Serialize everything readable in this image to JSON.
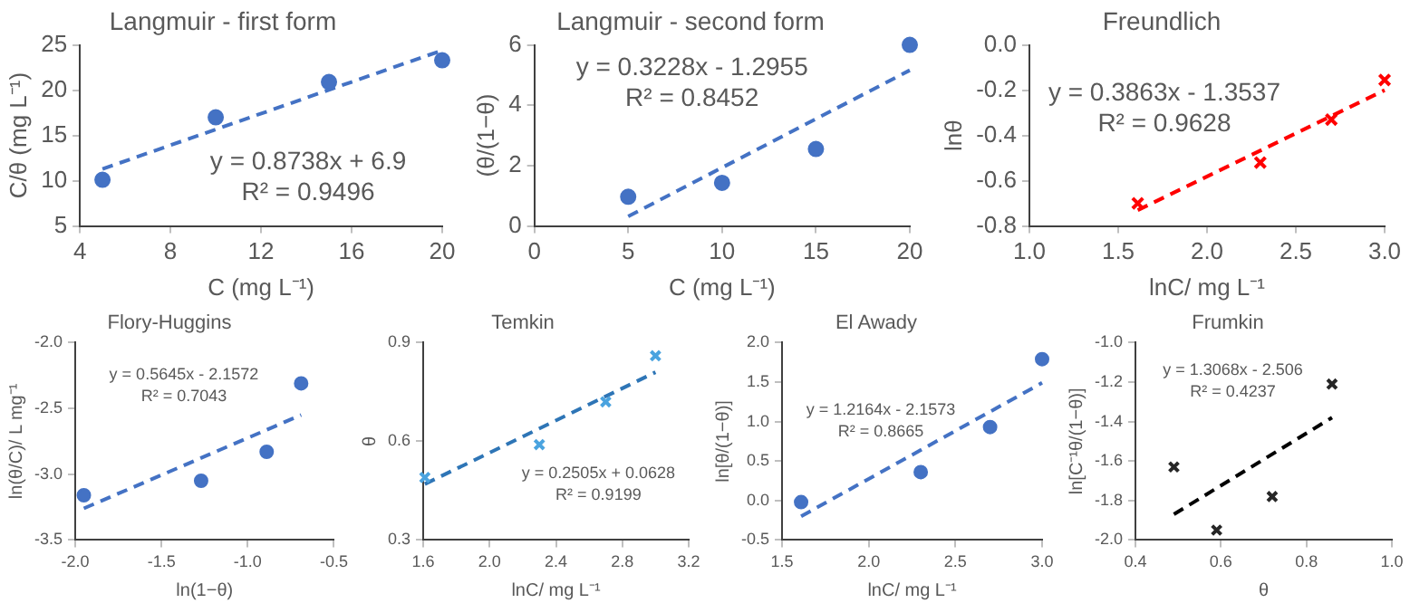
{
  "chart_data": [
    {
      "type": "scatter",
      "title": "Langmuir - first form",
      "xlabel": "C (mg L⁻¹)",
      "ylabel": "C/θ (mg L⁻¹)",
      "xlim": [
        4,
        20
      ],
      "xticks": [
        4,
        8,
        12,
        16,
        20
      ],
      "ylim": [
        5,
        25
      ],
      "yticks": [
        5,
        10,
        15,
        20,
        25
      ],
      "annotations": [
        "y = 0.8738x + 6.9",
        "R² = 0.9496"
      ],
      "series": [
        {
          "type": "scatter",
          "color": "#4472c4",
          "marker": "circle",
          "x": [
            5,
            10,
            15,
            20
          ],
          "values": [
            10.1,
            17,
            20.9,
            23.3
          ]
        },
        {
          "type": "line",
          "color": "#4472c4",
          "marker": "none",
          "line_style": "dashed",
          "x": [
            5,
            20
          ],
          "values": [
            11.3,
            24.4
          ]
        }
      ]
    },
    {
      "type": "scatter",
      "title": "Langmuir - second form",
      "xlabel": "C (mg L⁻¹)",
      "ylabel": "(θ/(1−θ)",
      "xlim": [
        0,
        20
      ],
      "xticks": [
        0,
        5,
        10,
        15,
        20
      ],
      "ylim": [
        0,
        6
      ],
      "yticks": [
        0,
        2,
        4,
        6
      ],
      "annotations": [
        "y = 0.3228x - 1.2955",
        "R² = 0.8452"
      ],
      "series": [
        {
          "type": "scatter",
          "color": "#4472c4",
          "marker": "circle",
          "x": [
            5,
            10,
            15,
            20
          ],
          "values": [
            0.97,
            1.43,
            2.55,
            6.0
          ]
        },
        {
          "type": "line",
          "color": "#4472c4",
          "marker": "none",
          "line_style": "dashed",
          "x": [
            5,
            20
          ],
          "values": [
            0.32,
            5.16
          ]
        }
      ]
    },
    {
      "type": "scatter",
      "title": "Freundlich",
      "xlabel": "lnC/ mg L⁻¹",
      "ylabel": "lnθ",
      "xlim": [
        1,
        3
      ],
      "xticks": [
        {
          "value": 1,
          "label": "1.0"
        },
        1.5,
        {
          "value": 2,
          "label": "2.0"
        },
        2.5,
        {
          "value": 3,
          "label": "3.0"
        }
      ],
      "ylim": [
        -0.8,
        0
      ],
      "yticks": [
        -0.8,
        -0.6,
        -0.4,
        -0.2,
        {
          "value": 0,
          "label": "0.0"
        }
      ],
      "annotations": [
        "y = 0.3863x - 1.3537",
        "R² = 0.9628"
      ],
      "series": [
        {
          "type": "scatter",
          "color": "#ff0000",
          "marker": "cross",
          "x": [
            1.61,
            2.3,
            2.7,
            3.0
          ],
          "values": [
            -0.7,
            -0.52,
            -0.33,
            -0.155
          ]
        },
        {
          "type": "line",
          "color": "#ff0000",
          "marker": "none",
          "line_style": "dashed",
          "x": [
            1.61,
            3.0
          ],
          "values": [
            -0.73,
            -0.2
          ]
        }
      ]
    },
    {
      "type": "scatter",
      "title": "Flory-Huggins",
      "xlabel": "ln(1−θ)",
      "ylabel": "ln(θ/C)/ L mg⁻¹",
      "xlim": [
        -2,
        -0.5
      ],
      "xticks": [
        {
          "value": -2,
          "label": "-2.0"
        },
        -1.5,
        {
          "value": -1,
          "label": "-1.0"
        },
        -0.5
      ],
      "ylim": [
        -3.5,
        -2
      ],
      "yticks": [
        -3.5,
        {
          "value": -3,
          "label": "-3.0"
        },
        -2.5,
        {
          "value": -2,
          "label": "-2.0"
        }
      ],
      "annotations": [
        "y = 0.5645x - 2.1572",
        "R² = 0.7043"
      ],
      "series": [
        {
          "type": "scatter",
          "color": "#4472c4",
          "marker": "circle",
          "x": [
            -1.95,
            -1.27,
            -0.89,
            -0.69
          ],
          "values": [
            -3.16,
            -3.05,
            -2.83,
            -2.31
          ]
        },
        {
          "type": "line",
          "color": "#4472c4",
          "marker": "none",
          "line_style": "dashed",
          "x": [
            -1.95,
            -0.69
          ],
          "values": [
            -3.26,
            -2.55
          ]
        }
      ]
    },
    {
      "type": "scatter",
      "title": "Temkin",
      "xlabel": "lnC/ mg L⁻¹",
      "ylabel": "θ",
      "xlim": [
        1.6,
        3.2
      ],
      "xticks": [
        1.6,
        {
          "value": 2,
          "label": "2.0"
        },
        2.4,
        2.8,
        3.2
      ],
      "ylim": [
        0.3,
        0.9
      ],
      "yticks": [
        0.3,
        0.6,
        0.9
      ],
      "annotations": [
        "y = 0.2505x + 0.0628",
        "R² = 0.9199"
      ],
      "series": [
        {
          "type": "scatter",
          "color": "#4aa3df",
          "marker": "cross",
          "x": [
            1.61,
            2.3,
            2.7,
            3.0
          ],
          "values": [
            0.49,
            0.59,
            0.72,
            0.86
          ]
        },
        {
          "type": "line",
          "color": "#2e75b6",
          "marker": "none",
          "line_style": "dashed",
          "x": [
            1.61,
            3.0
          ],
          "values": [
            0.47,
            0.81
          ]
        }
      ]
    },
    {
      "type": "scatter",
      "title": "El Awady",
      "xlabel": "lnC/ mg L⁻¹",
      "ylabel": "ln[θ/(1−θ)]",
      "xlim": [
        1.5,
        3
      ],
      "xticks": [
        1.5,
        {
          "value": 2,
          "label": "2.0"
        },
        2.5,
        {
          "value": 3,
          "label": "3.0"
        }
      ],
      "ylim": [
        -0.5,
        2
      ],
      "yticks": [
        -0.5,
        {
          "value": 0,
          "label": "0.0"
        },
        0.5,
        {
          "value": 1,
          "label": "1.0"
        },
        1.5,
        {
          "value": 2,
          "label": "2.0"
        }
      ],
      "annotations": [
        "y = 1.2164x - 2.1573",
        "R² = 0.8665"
      ],
      "series": [
        {
          "type": "scatter",
          "color": "#4472c4",
          "marker": "circle",
          "x": [
            1.61,
            2.3,
            2.7,
            3.0
          ],
          "values": [
            -0.02,
            0.36,
            0.93,
            1.79
          ]
        },
        {
          "type": "line",
          "color": "#4472c4",
          "marker": "none",
          "line_style": "dashed",
          "x": [
            1.61,
            3.0
          ],
          "values": [
            -0.2,
            1.49
          ]
        }
      ]
    },
    {
      "type": "scatter",
      "title": "Frumkin",
      "xlabel": "θ",
      "ylabel": "ln[C⁻¹θ/(1−θ)]",
      "xlim": [
        0.4,
        1
      ],
      "xticks": [
        0.4,
        0.6,
        0.8,
        {
          "value": 1,
          "label": "1.0"
        }
      ],
      "ylim": [
        -2,
        -1
      ],
      "yticks": [
        {
          "value": -2,
          "label": "-2.0"
        },
        -1.8,
        -1.6,
        -1.4,
        -1.2,
        {
          "value": -1,
          "label": "-1.0"
        }
      ],
      "annotations": [
        "y = 1.3068x - 2.506",
        "R² = 0.4237"
      ],
      "series": [
        {
          "type": "scatter",
          "color": "#262626",
          "marker": "cross",
          "x": [
            0.49,
            0.59,
            0.72,
            0.86
          ],
          "values": [
            -1.63,
            -1.95,
            -1.78,
            -1.21
          ]
        },
        {
          "type": "line",
          "color": "#000000",
          "marker": "none",
          "line_style": "dashed",
          "x": [
            0.49,
            0.86
          ],
          "values": [
            -1.87,
            -1.38
          ]
        }
      ]
    }
  ]
}
